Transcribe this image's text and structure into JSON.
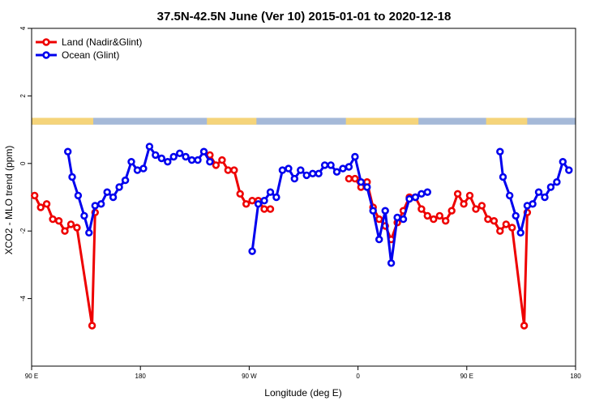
{
  "chart_data": {
    "type": "line",
    "title": "37.5N-42.5N June (Ver 10)   2015-01-01 to 2020-12-18",
    "xlabel": "Longitude (deg E)",
    "ylabel": "XCO2 - MLO trend (ppm)",
    "xlim": [
      90,
      540
    ],
    "ylim": [
      -6,
      4
    ],
    "x_ticks": [
      {
        "value": 90,
        "label": "90 E"
      },
      {
        "value": 180,
        "label": "180"
      },
      {
        "value": 270,
        "label": "90 W"
      },
      {
        "value": 360,
        "label": "0"
      },
      {
        "value": 450,
        "label": "90 E"
      },
      {
        "value": 540,
        "label": "180"
      }
    ],
    "y_ticks": [
      {
        "value": -4,
        "label": "-4"
      },
      {
        "value": -2,
        "label": "-2"
      },
      {
        "value": 0,
        "label": "0"
      },
      {
        "value": 2,
        "label": "2"
      },
      {
        "value": 4,
        "label": "4"
      }
    ],
    "legend": {
      "position": "top-left"
    },
    "land_sea_band": {
      "y_range": [
        1.15,
        1.35
      ],
      "land_color": "#f5d47a",
      "ocean_color": "#a5b9d8",
      "land_segments": [
        [
          90,
          141
        ],
        [
          235,
          276
        ],
        [
          350,
          410
        ],
        [
          466,
          500
        ]
      ]
    },
    "series": [
      {
        "name": "Land (Nadir&Glint)",
        "color": "#ee0000",
        "segments": [
          [
            [
              92.5,
              -0.95
            ],
            [
              97.5,
              -1.3
            ],
            [
              102.5,
              -1.2
            ],
            [
              107.5,
              -1.65
            ],
            [
              112.5,
              -1.7
            ],
            [
              117.5,
              -2.0
            ],
            [
              122.5,
              -1.8
            ],
            [
              127.5,
              -1.9
            ],
            [
              140,
              -4.8
            ],
            [
              142.5,
              -1.45
            ]
          ],
          [
            [
              237.5,
              0.25
            ],
            [
              242.5,
              -0.05
            ],
            [
              247.5,
              0.1
            ],
            [
              252.5,
              -0.2
            ],
            [
              257.5,
              -0.2
            ],
            [
              262.5,
              -0.9
            ],
            [
              267.5,
              -1.2
            ],
            [
              272.5,
              -1.1
            ],
            [
              277.5,
              -1.1
            ],
            [
              282.5,
              -1.35
            ],
            [
              287.5,
              -1.35
            ]
          ],
          [
            [
              352.5,
              -0.45
            ],
            [
              357.5,
              -0.45
            ],
            [
              362.5,
              -0.7
            ],
            [
              367.5,
              -0.55
            ],
            [
              372.5,
              -1.3
            ],
            [
              377.5,
              -1.65
            ],
            [
              382.5,
              -1.85
            ],
            [
              387.5,
              -2.25
            ],
            [
              392.5,
              -1.75
            ],
            [
              397.5,
              -1.4
            ],
            [
              402.5,
              -1.0
            ],
            [
              407.5,
              -1.0
            ],
            [
              412.5,
              -1.35
            ],
            [
              417.5,
              -1.55
            ],
            [
              422.5,
              -1.65
            ],
            [
              427.5,
              -1.55
            ],
            [
              432.5,
              -1.7
            ],
            [
              437.5,
              -1.4
            ],
            [
              442.5,
              -0.9
            ],
            [
              447.5,
              -1.2
            ],
            [
              452.5,
              -0.95
            ],
            [
              457.5,
              -1.35
            ],
            [
              462.5,
              -1.25
            ],
            [
              467.5,
              -1.65
            ],
            [
              472.5,
              -1.7
            ],
            [
              477.5,
              -2.0
            ],
            [
              482.5,
              -1.8
            ],
            [
              487.5,
              -1.9
            ],
            [
              497.5,
              -4.8
            ],
            [
              500,
              -1.45
            ]
          ]
        ]
      },
      {
        "name": "Ocean (Glint)",
        "color": "#0000ee",
        "segments": [
          [
            [
              120,
              0.35
            ],
            [
              123.5,
              -0.4
            ],
            [
              128.5,
              -0.95
            ],
            [
              133.5,
              -1.55
            ],
            [
              137.5,
              -2.05
            ],
            [
              142.5,
              -1.25
            ],
            [
              147.5,
              -1.2
            ],
            [
              152.5,
              -0.85
            ],
            [
              157.5,
              -1.0
            ],
            [
              162.5,
              -0.7
            ],
            [
              167.5,
              -0.5
            ],
            [
              172.5,
              0.05
            ],
            [
              177.5,
              -0.2
            ],
            [
              182.5,
              -0.15
            ],
            [
              187.5,
              0.5
            ],
            [
              192.5,
              0.25
            ],
            [
              197.5,
              0.15
            ],
            [
              202.5,
              0.05
            ],
            [
              207.5,
              0.2
            ],
            [
              212.5,
              0.3
            ],
            [
              217.5,
              0.2
            ],
            [
              222.5,
              0.1
            ],
            [
              227.5,
              0.1
            ],
            [
              232.5,
              0.35
            ],
            [
              237.5,
              0.05
            ]
          ],
          [
            [
              272.5,
              -2.6
            ],
            [
              277.5,
              -1.2
            ],
            [
              282.5,
              -1.1
            ],
            [
              287.5,
              -0.85
            ],
            [
              292.5,
              -1.0
            ],
            [
              297.5,
              -0.2
            ],
            [
              302.5,
              -0.15
            ],
            [
              307.5,
              -0.45
            ],
            [
              312.5,
              -0.2
            ],
            [
              317.5,
              -0.35
            ],
            [
              322.5,
              -0.3
            ],
            [
              327.5,
              -0.3
            ],
            [
              332.5,
              -0.05
            ],
            [
              337.5,
              -0.05
            ],
            [
              342.5,
              -0.25
            ],
            [
              347.5,
              -0.15
            ],
            [
              352.5,
              -0.1
            ],
            [
              357.5,
              0.2
            ],
            [
              362.5,
              -0.55
            ],
            [
              367.5,
              -0.7
            ],
            [
              372.5,
              -1.4
            ],
            [
              377.5,
              -2.25
            ],
            [
              382.5,
              -1.4
            ],
            [
              387.5,
              -2.95
            ],
            [
              392.5,
              -1.6
            ],
            [
              397.5,
              -1.65
            ],
            [
              402.5,
              -1.05
            ],
            [
              407.5,
              -1.0
            ],
            [
              412.5,
              -0.9
            ],
            [
              417.5,
              -0.85
            ]
          ],
          [
            [
              477.5,
              0.35
            ],
            [
              480,
              -0.4
            ],
            [
              485.5,
              -0.95
            ],
            [
              490.5,
              -1.55
            ],
            [
              494.5,
              -2.05
            ],
            [
              500,
              -1.25
            ],
            [
              504.5,
              -1.2
            ],
            [
              509.5,
              -0.85
            ],
            [
              514.5,
              -1.0
            ],
            [
              519.5,
              -0.7
            ],
            [
              524.5,
              -0.55
            ],
            [
              529.5,
              0.05
            ],
            [
              534.5,
              -0.2
            ]
          ]
        ]
      }
    ]
  }
}
